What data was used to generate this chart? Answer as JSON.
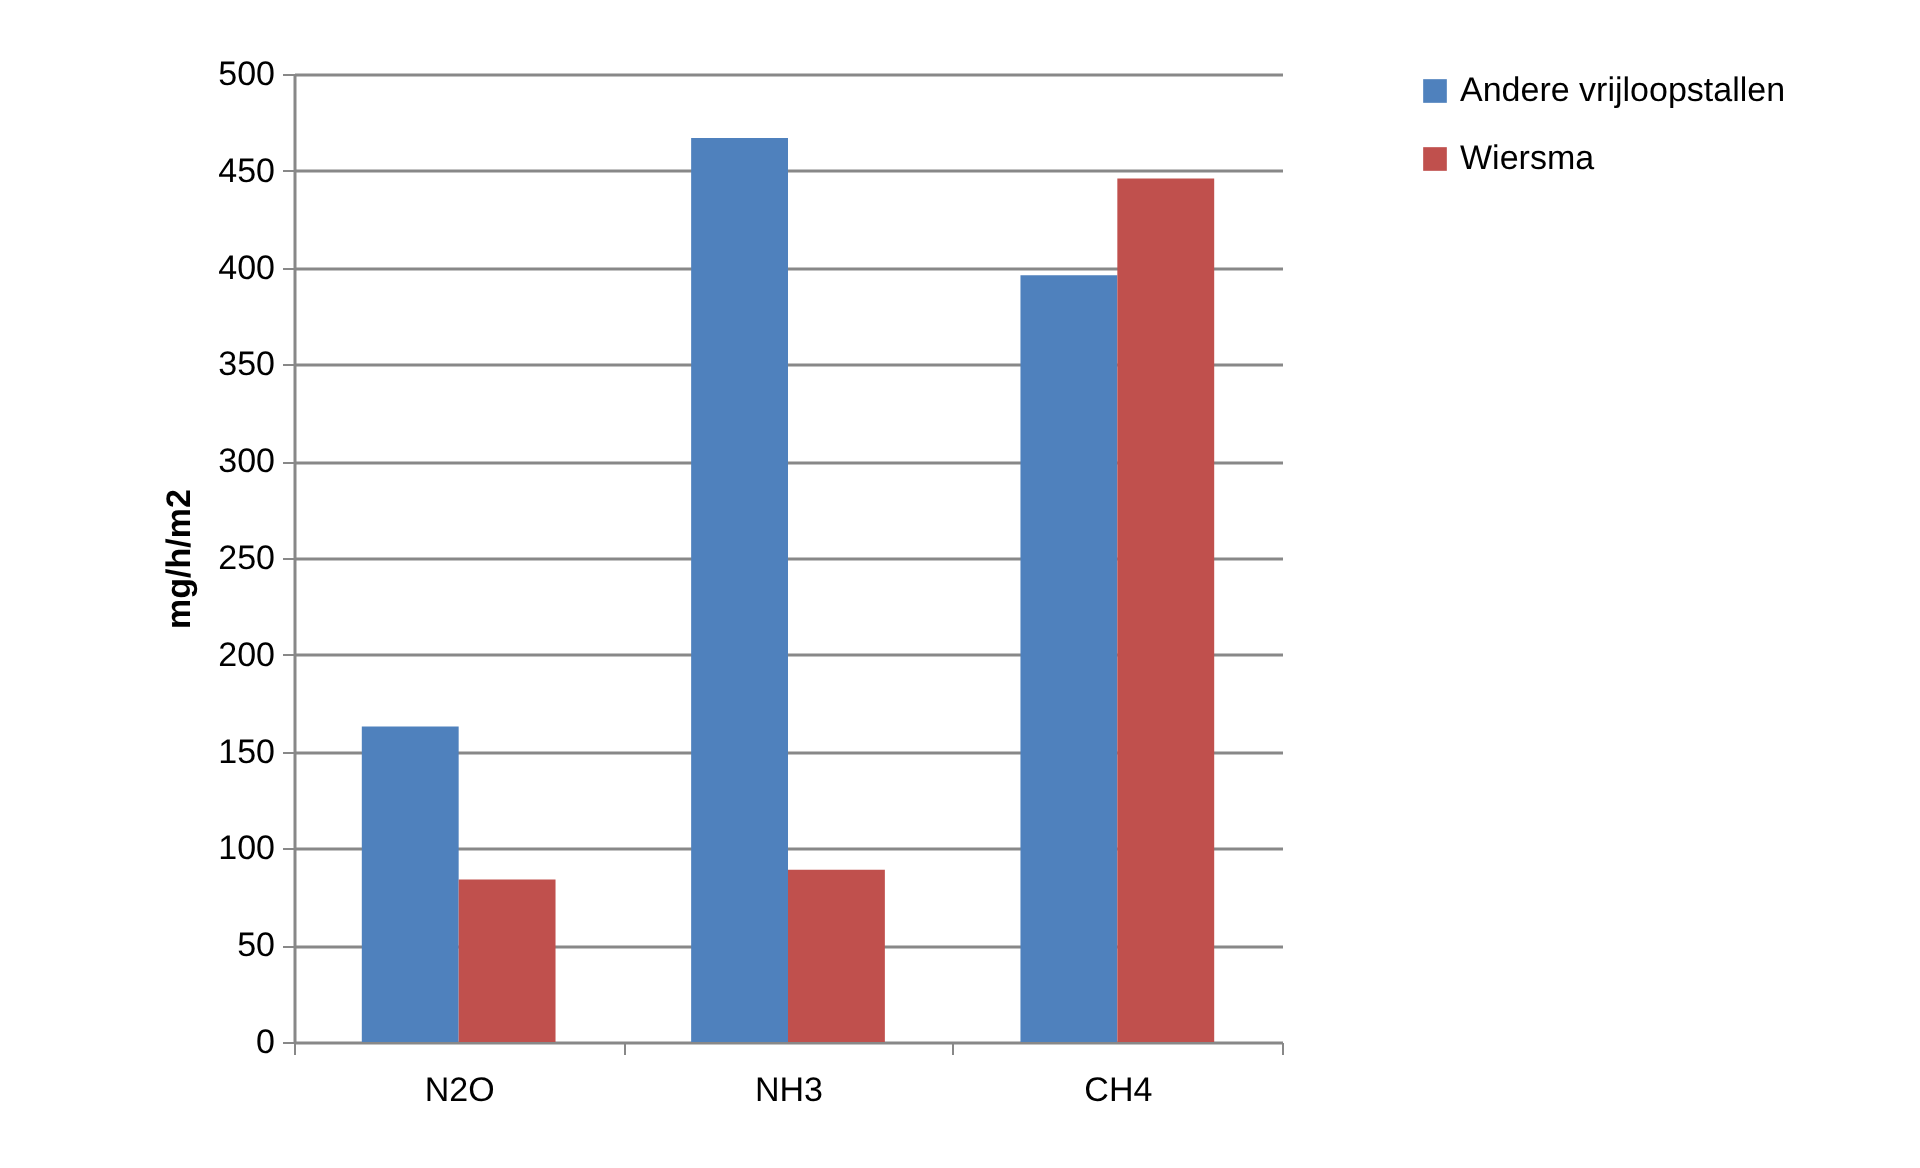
{
  "chart_data": {
    "type": "bar",
    "ylabel": "mg/h/m2",
    "categories": [
      "N2O",
      "NH3",
      "CH4"
    ],
    "series": [
      {
        "name": "Andere vrijloopstallen",
        "color": "#4f81bd",
        "values": [
          163,
          467,
          396
        ]
      },
      {
        "name": "Wiersma",
        "color": "#c0504d",
        "values": [
          84,
          89,
          446
        ]
      }
    ],
    "ylim": [
      0,
      500
    ],
    "yticks": [
      0,
      50,
      100,
      150,
      200,
      250,
      300,
      350,
      400,
      450,
      500
    ],
    "grid": "y",
    "legend": "right"
  }
}
